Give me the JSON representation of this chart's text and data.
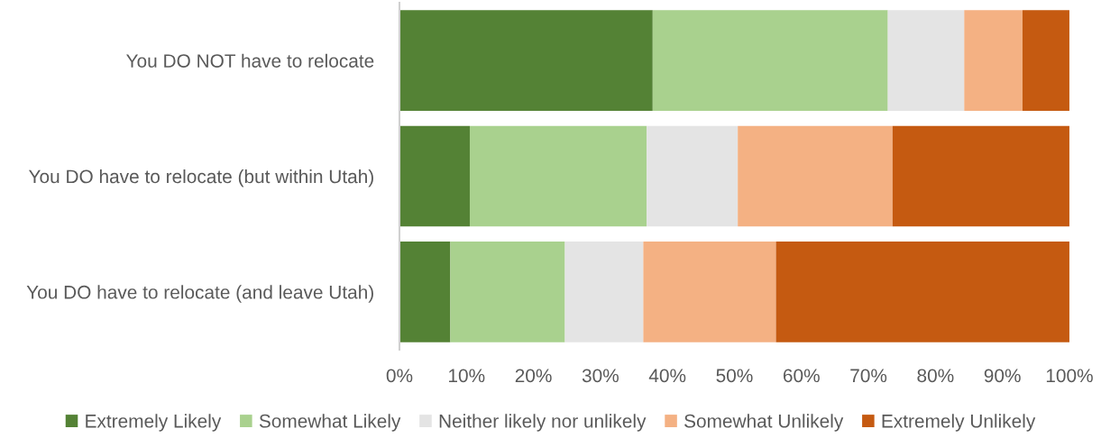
{
  "chart_data": {
    "type": "bar",
    "orientation": "horizontal",
    "stacked": true,
    "categories": [
      "You DO NOT have to relocate",
      "You DO have to relocate (but within Utah)",
      "You DO have to relocate (and leave Utah)"
    ],
    "series": [
      {
        "name": "Extremely Likely",
        "color": "#548235",
        "values": [
          37.8,
          10.5,
          7.6
        ]
      },
      {
        "name": "Somewhat Likely",
        "color": "#a9d18e",
        "values": [
          35.1,
          26.4,
          17.1
        ]
      },
      {
        "name": "Neither likely nor unlikely",
        "color": "#e4e4e4",
        "values": [
          11.4,
          13.6,
          11.7
        ]
      },
      {
        "name": "Somewhat Unlikely",
        "color": "#f4b183",
        "values": [
          8.7,
          23.1,
          19.8
        ]
      },
      {
        "name": "Extremely Unlikely",
        "color": "#c55a11",
        "values": [
          7.0,
          26.4,
          43.8
        ]
      }
    ],
    "xlim": [
      0,
      100
    ],
    "xticks": [
      {
        "value": 0,
        "label": "0%"
      },
      {
        "value": 10,
        "label": "10%"
      },
      {
        "value": 20,
        "label": "20%"
      },
      {
        "value": 30,
        "label": "30%"
      },
      {
        "value": 40,
        "label": "40%"
      },
      {
        "value": 50,
        "label": "50%"
      },
      {
        "value": 60,
        "label": "60%"
      },
      {
        "value": 70,
        "label": "70%"
      },
      {
        "value": 80,
        "label": "80%"
      },
      {
        "value": 90,
        "label": "90%"
      },
      {
        "value": 100,
        "label": "100%"
      }
    ],
    "legend": "bottom",
    "grid": false
  }
}
